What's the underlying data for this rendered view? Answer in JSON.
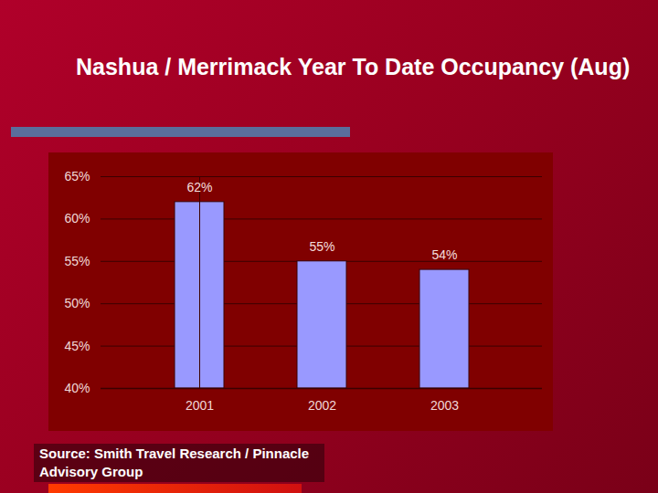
{
  "chart_data": {
    "type": "bar",
    "title": "Nashua / Merrimack Year To Date Occupancy (Aug)",
    "categories": [
      "2001",
      "2002",
      "2003"
    ],
    "values": [
      62,
      55,
      54
    ],
    "value_labels": [
      "62%",
      "55%",
      "54%"
    ],
    "data_labels": true,
    "color": "#9999ff",
    "ylim": [
      40,
      65
    ],
    "yticks": [
      {
        "value": 40,
        "label": "40%"
      },
      {
        "value": 45,
        "label": "45%"
      },
      {
        "value": 50,
        "label": "50%"
      },
      {
        "value": 55,
        "label": "55%"
      },
      {
        "value": 60,
        "label": "60%"
      },
      {
        "value": 65,
        "label": "65%"
      }
    ],
    "grid": true,
    "source": "Source: Smith Travel Research / Pinnacle Advisory Group"
  }
}
